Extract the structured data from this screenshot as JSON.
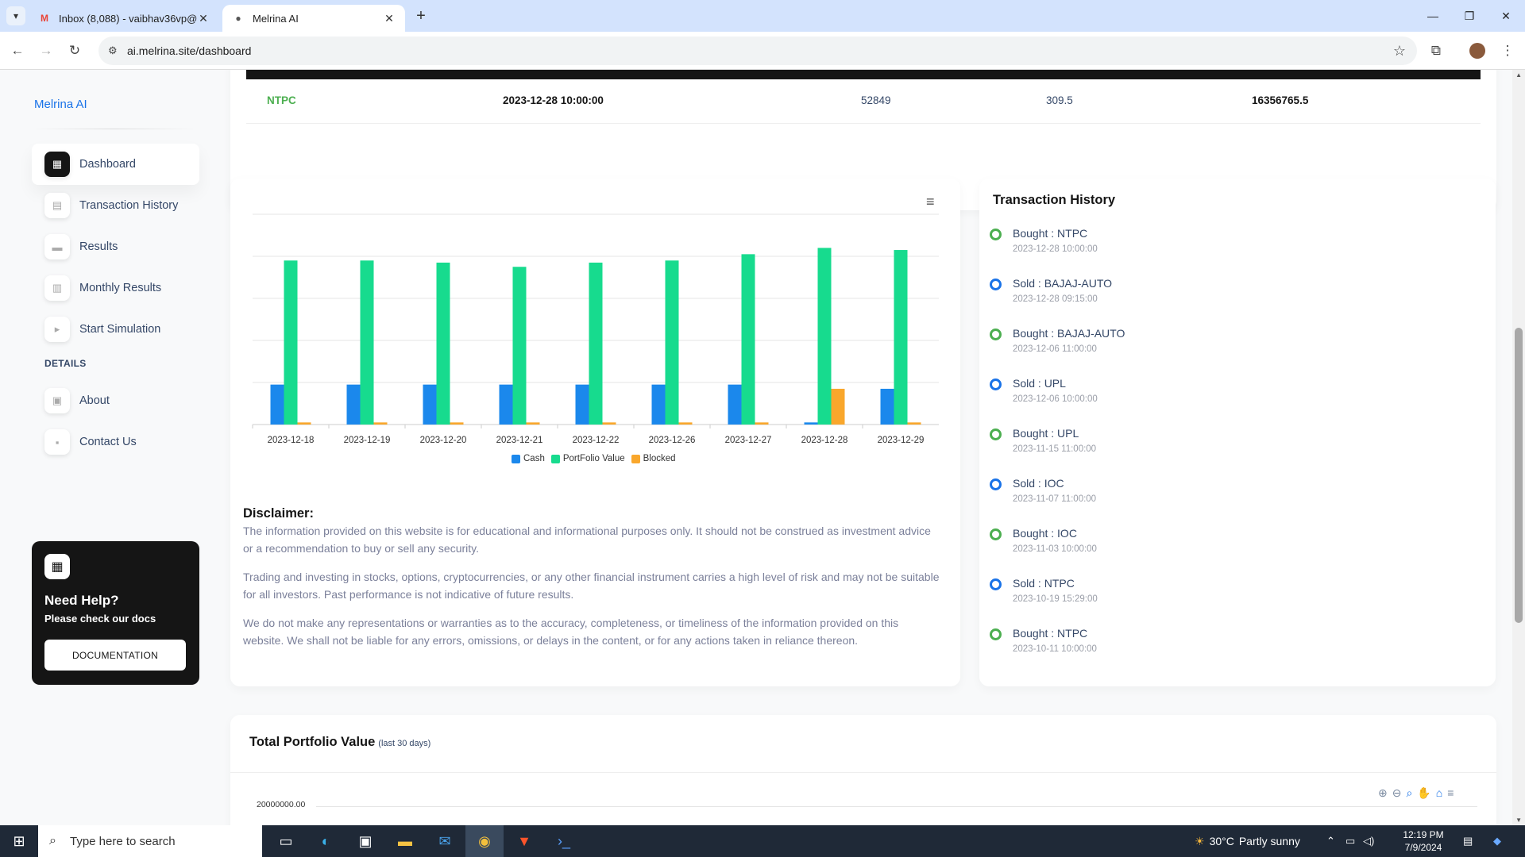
{
  "browser": {
    "tabs": [
      {
        "label": "Inbox (8,088) - vaibhav36vp@g",
        "icon": "gmail-icon"
      },
      {
        "label": "Melrina AI",
        "icon": "melrina-icon"
      }
    ],
    "url": "ai.melrina.site/dashboard"
  },
  "sidebar": {
    "brand": "Melrina AI",
    "items": [
      {
        "label": "Dashboard",
        "active": true
      },
      {
        "label": "Transaction History"
      },
      {
        "label": "Results"
      },
      {
        "label": "Monthly Results"
      },
      {
        "label": "Start Simulation"
      }
    ],
    "section_label": "DETAILS",
    "detail_items": [
      {
        "label": "About"
      },
      {
        "label": "Contact Us"
      }
    ],
    "help": {
      "title": "Need Help?",
      "subtitle": "Please check our docs",
      "button": "DOCUMENTATION"
    }
  },
  "holding_row": {
    "symbol": "NTPC",
    "datetime": "2023-12-28 10:00:00",
    "quantity": "52849",
    "price": "309.5",
    "value": "16356765.5"
  },
  "chart_data": {
    "type": "bar",
    "categories": [
      "2023-12-18",
      "2023-12-19",
      "2023-12-20",
      "2023-12-21",
      "2023-12-22",
      "2023-12-26",
      "2023-12-27",
      "2023-12-28",
      "2023-12-29"
    ],
    "series": [
      {
        "name": "Cash",
        "color": "#1b88ec",
        "values": [
          0.19,
          0.19,
          0.19,
          0.19,
          0.19,
          0.19,
          0.19,
          0.01,
          0.17
        ]
      },
      {
        "name": "PortFolio Value",
        "color": "#17db8e",
        "values": [
          0.78,
          0.78,
          0.77,
          0.75,
          0.77,
          0.78,
          0.81,
          0.84,
          0.83
        ]
      },
      {
        "name": "Blocked",
        "color": "#f9a72c",
        "values": [
          0.01,
          0.01,
          0.01,
          0.01,
          0.01,
          0.01,
          0.01,
          0.17,
          0.01
        ]
      }
    ],
    "ylim": [
      0,
      1
    ],
    "grid": true,
    "legend": "bottom-center"
  },
  "disclaimer": {
    "title": "Disclaimer:",
    "p1": "The information provided on this website is for educational and informational purposes only. It should not be construed as investment advice or a recommendation to buy or sell any security.",
    "p2": "Trading and investing in stocks, options, cryptocurrencies, or any other financial instrument carries a high level of risk and may not be suitable for all investors. Past performance is not indicative of future results.",
    "p3": "We do not make any representations or warranties as to the accuracy, completeness, or timeliness of the information provided on this website. We shall not be liable for any errors, omissions, or delays in the content, or for any actions taken in reliance thereon."
  },
  "transactions": {
    "title": "Transaction History",
    "items": [
      {
        "action": "Bought : NTPC",
        "time": "2023-12-28 10:00:00",
        "type": "bought"
      },
      {
        "action": "Sold : BAJAJ-AUTO",
        "time": "2023-12-28 09:15:00",
        "type": "sold"
      },
      {
        "action": "Bought : BAJAJ-AUTO",
        "time": "2023-12-06 11:00:00",
        "type": "bought"
      },
      {
        "action": "Sold : UPL",
        "time": "2023-12-06 10:00:00",
        "type": "sold"
      },
      {
        "action": "Bought : UPL",
        "time": "2023-11-15 11:00:00",
        "type": "bought"
      },
      {
        "action": "Sold : IOC",
        "time": "2023-11-07 11:00:00",
        "type": "sold"
      },
      {
        "action": "Bought : IOC",
        "time": "2023-11-03 10:00:00",
        "type": "bought"
      },
      {
        "action": "Sold : NTPC",
        "time": "2023-10-19 15:29:00",
        "type": "sold"
      },
      {
        "action": "Bought : NTPC",
        "time": "2023-10-11 10:00:00",
        "type": "bought"
      }
    ]
  },
  "portfolio": {
    "title": "Total Portfolio Value",
    "subtitle": "(last 30 days)",
    "y_top_label": "20000000.00"
  },
  "taskbar": {
    "search_placeholder": "Type here to search",
    "temperature": "30°C",
    "weather": "Partly sunny",
    "time": "12:19 PM",
    "date": "7/9/2024"
  }
}
